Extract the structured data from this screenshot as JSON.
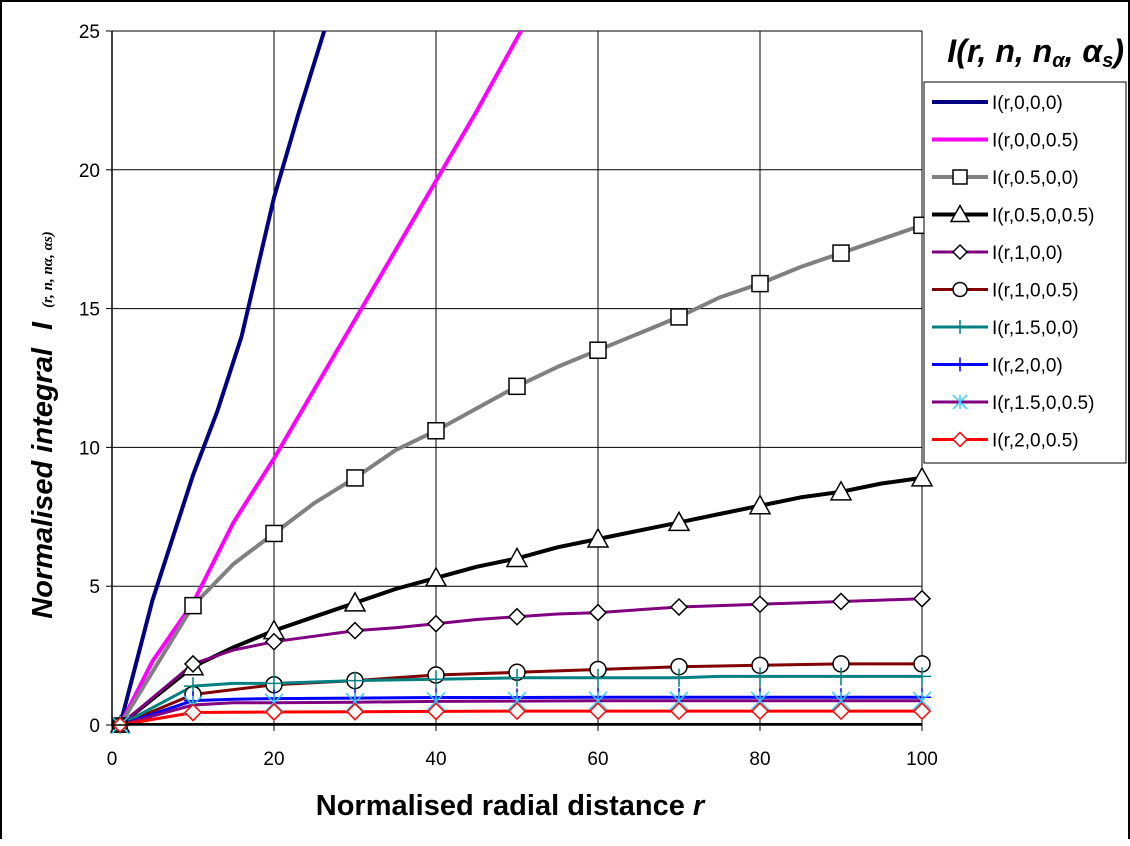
{
  "chart_data": {
    "type": "line",
    "title": "I(r, n, nα, αs)",
    "title_parts": {
      "lead": "I(",
      "r": "r",
      "sep1": ", ",
      "n": "n",
      "sep2": ", ",
      "na_base": "n",
      "na_sub": "α",
      "sep3": ", ",
      "as_base": "α",
      "as_sub": "s",
      "close": ")"
    },
    "xlabel": "Normalised radial distance",
    "xlabel_var": "r",
    "ylabel": "Normalised integral",
    "ylabel_symbol": "I",
    "ylabel_args": "(r, n, nα, αs)",
    "xlim": [
      0,
      100
    ],
    "ylim": [
      0,
      25
    ],
    "x_ticks": [
      0,
      20,
      40,
      60,
      80,
      100
    ],
    "y_ticks": [
      0,
      5,
      10,
      15,
      20,
      25
    ],
    "x_tick_labels": [
      "0",
      "20",
      "40",
      "60",
      "80",
      "100"
    ],
    "y_tick_labels": [
      "0",
      "5",
      "10",
      "15",
      "20",
      "25"
    ],
    "grid": true,
    "legend_position": "right",
    "series": [
      {
        "name": "I(r,0,0,0)",
        "color": "#000080",
        "marker": "none",
        "width": 4,
        "x": [
          1,
          5,
          10,
          13,
          16,
          20,
          23,
          26.2
        ],
        "y": [
          0,
          4.5,
          9,
          11.3,
          14,
          19,
          22,
          25
        ]
      },
      {
        "name": "I(r,0,0,0.5)",
        "color": "#ff00ff",
        "marker": "none",
        "width": 4,
        "x": [
          1,
          5,
          10,
          15,
          20,
          25,
          30,
          35,
          40,
          45,
          50.5
        ],
        "y": [
          0,
          2.3,
          4.4,
          7.3,
          9.6,
          12.1,
          14.6,
          17.1,
          19.6,
          22.1,
          25
        ]
      },
      {
        "name": "I(r,0.5,0,0)",
        "color": "#808080",
        "marker": "square",
        "width": 4,
        "x": [
          1,
          10,
          15,
          20,
          25,
          30,
          35,
          40,
          45,
          50,
          55,
          60,
          65,
          70,
          75,
          80,
          85,
          90,
          95,
          100
        ],
        "y": [
          0,
          4.3,
          5.8,
          6.9,
          8.0,
          8.9,
          9.9,
          10.6,
          11.4,
          12.2,
          12.9,
          13.5,
          14.1,
          14.7,
          15.4,
          15.9,
          16.5,
          17.0,
          17.5,
          18.0
        ]
      },
      {
        "name": "I(r,0.5,0,0.5)",
        "color": "#000000",
        "marker": "triangle",
        "width": 4,
        "x": [
          1,
          10,
          15,
          20,
          25,
          30,
          35,
          40,
          45,
          50,
          55,
          60,
          65,
          70,
          75,
          80,
          85,
          90,
          95,
          100
        ],
        "y": [
          0,
          2.1,
          2.8,
          3.4,
          3.9,
          4.4,
          4.9,
          5.3,
          5.7,
          6.0,
          6.4,
          6.7,
          7.0,
          7.3,
          7.6,
          7.9,
          8.2,
          8.4,
          8.7,
          8.9
        ]
      },
      {
        "name": "I(r,1,0,0)",
        "color": "#800080",
        "marker": "diamond",
        "width": 3,
        "x": [
          1,
          10,
          15,
          20,
          25,
          30,
          35,
          40,
          45,
          50,
          55,
          60,
          65,
          70,
          75,
          80,
          85,
          90,
          95,
          100
        ],
        "y": [
          0,
          2.2,
          2.7,
          3.0,
          3.2,
          3.4,
          3.5,
          3.65,
          3.8,
          3.9,
          4.0,
          4.05,
          4.15,
          4.25,
          4.3,
          4.35,
          4.4,
          4.45,
          4.5,
          4.55
        ]
      },
      {
        "name": "I(r,1,0,0.5)",
        "color": "#800000",
        "marker": "circle",
        "width": 3,
        "x": [
          1,
          10,
          20,
          30,
          40,
          50,
          60,
          70,
          80,
          90,
          100
        ],
        "y": [
          0,
          1.1,
          1.45,
          1.6,
          1.8,
          1.9,
          2.0,
          2.1,
          2.15,
          2.2,
          2.2
        ]
      },
      {
        "name": "I(r,1.5,0,0)",
        "color": "#008080",
        "marker": "plus",
        "width": 3,
        "x": [
          1,
          10,
          15,
          20,
          25,
          30,
          40,
          50,
          60,
          70,
          75,
          80,
          90,
          100
        ],
        "y": [
          0,
          1.4,
          1.5,
          1.5,
          1.55,
          1.6,
          1.65,
          1.7,
          1.7,
          1.7,
          1.75,
          1.75,
          1.75,
          1.75
        ]
      },
      {
        "name": "I(r,2,0,0)",
        "color": "#0000ff",
        "marker": "plus",
        "width": 3,
        "x": [
          1,
          10,
          15,
          20,
          30,
          40,
          50,
          60,
          70,
          80,
          90,
          100
        ],
        "y": [
          0,
          0.88,
          0.93,
          0.95,
          0.97,
          0.99,
          0.99,
          1.0,
          1.0,
          1.0,
          1.0,
          1.0
        ]
      },
      {
        "name": "I(r,1.5,0,0.5)",
        "color": "#800080",
        "marker": "star",
        "marker_color": "#33ccff",
        "width": 3,
        "x": [
          1,
          10,
          15,
          20,
          30,
          40,
          50,
          60,
          70,
          80,
          90,
          100
        ],
        "y": [
          0,
          0.72,
          0.8,
          0.8,
          0.82,
          0.85,
          0.86,
          0.87,
          0.87,
          0.87,
          0.87,
          0.87
        ]
      },
      {
        "name": "I(r,2,0,0.5)",
        "color": "#ff0000",
        "marker": "diamond",
        "width": 3,
        "x": [
          1,
          10,
          20,
          30,
          40,
          50,
          60,
          70,
          80,
          90,
          100
        ],
        "y": [
          0,
          0.45,
          0.47,
          0.48,
          0.49,
          0.5,
          0.5,
          0.5,
          0.5,
          0.5,
          0.5
        ]
      }
    ]
  }
}
